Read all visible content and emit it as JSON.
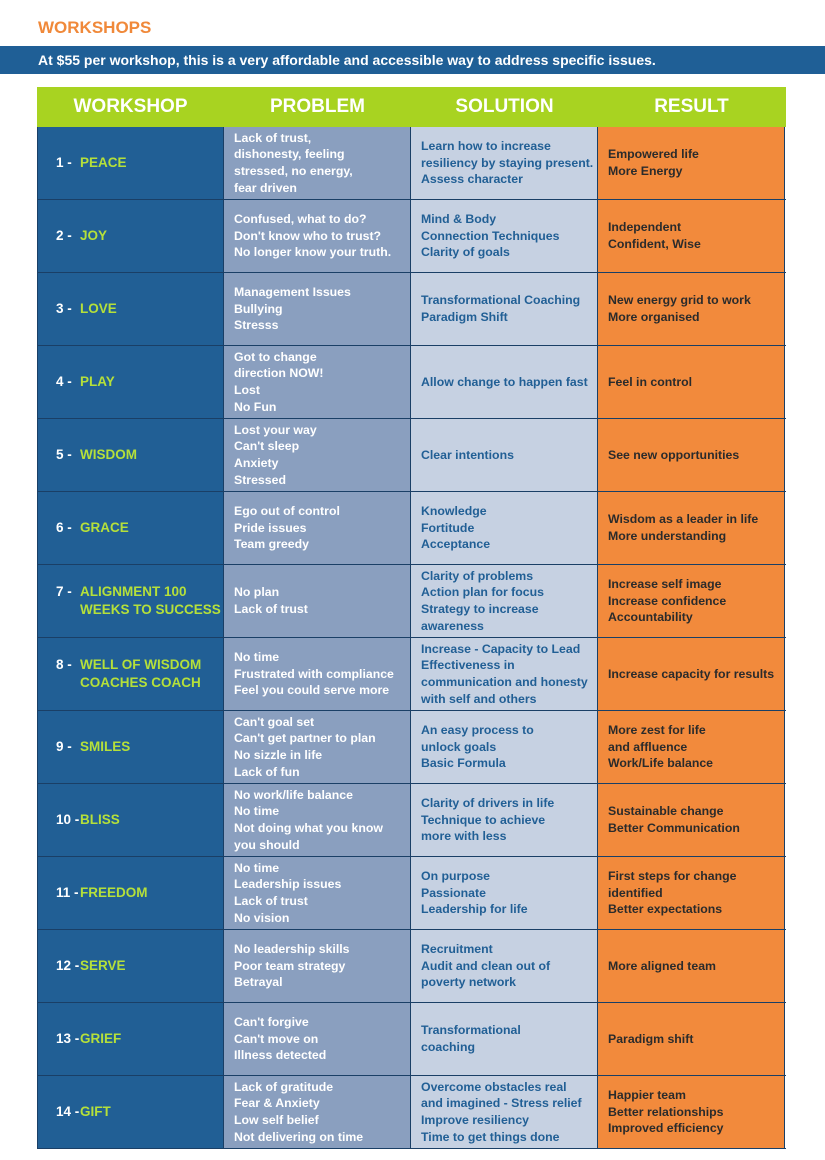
{
  "header": {
    "title": "WORKSHOPS",
    "banner": "At $55 per workshop, this is a very affordable and accessible way to address specific issues."
  },
  "table": {
    "columns": [
      "WORKSHOP",
      "PROBLEM",
      "SOLUTION",
      "RESULT"
    ],
    "rows": [
      {
        "number": "1 -",
        "name": [
          "PEACE"
        ],
        "problem": [
          "Lack of trust,",
          "dishonesty, feeling",
          "stressed, no energy,",
          "fear driven"
        ],
        "solution": [
          "Learn how to increase",
          "resiliency by staying present.",
          "Assess character"
        ],
        "result": [
          "Empowered life",
          "More Energy"
        ]
      },
      {
        "number": "2 -",
        "name": [
          "JOY"
        ],
        "problem": [
          "Confused, what to do?",
          "Don't know who to trust?",
          "No longer know your truth."
        ],
        "solution": [
          "Mind & Body",
          "Connection Techniques",
          "Clarity of goals"
        ],
        "result": [
          "Independent",
          "Confident, Wise"
        ]
      },
      {
        "number": "3 -",
        "name": [
          "LOVE"
        ],
        "problem": [
          "Management Issues",
          "Bullying",
          "Stresss"
        ],
        "solution": [
          "Transformational Coaching",
          "Paradigm Shift"
        ],
        "result": [
          "New energy grid to work",
          "More organised"
        ]
      },
      {
        "number": "4 -",
        "name": [
          "PLAY"
        ],
        "problem": [
          "Got to change",
          "direction NOW!",
          "Lost",
          "No Fun"
        ],
        "solution": [
          "Allow change to happen fast"
        ],
        "result": [
          "Feel in control"
        ]
      },
      {
        "number": "5 -",
        "name": [
          "WISDOM"
        ],
        "problem": [
          "Lost your way",
          "Can't sleep",
          "Anxiety",
          "Stressed"
        ],
        "solution": [
          "Clear intentions"
        ],
        "result": [
          "See new opportunities"
        ]
      },
      {
        "number": "6 -",
        "name": [
          "GRACE"
        ],
        "problem": [
          "Ego out of control",
          "Pride issues",
          "Team greedy"
        ],
        "solution": [
          "Knowledge",
          "Fortitude",
          "Acceptance"
        ],
        "result": [
          "Wisdom as a leader in life",
          "More understanding"
        ]
      },
      {
        "number": "7 -",
        "name": [
          "ALIGNMENT 100",
          "WEEKS TO SUCCESS"
        ],
        "problem": [
          "No plan",
          "Lack of trust"
        ],
        "solution": [
          "Clarity of problems",
          "Action plan for focus",
          "Strategy to increase",
          "awareness"
        ],
        "result": [
          "Increase self image",
          "Increase confidence",
          "Accountability"
        ]
      },
      {
        "number": "8 -",
        "name": [
          "WELL OF WISDOM",
          "COACHES COACH"
        ],
        "problem": [
          "No time",
          "Frustrated with compliance",
          "Feel you could serve more"
        ],
        "solution": [
          "Increase - Capacity to Lead",
          "Effectiveness in",
          "communication and honesty",
          "with self and others"
        ],
        "result": [
          "Increase capacity for results"
        ]
      },
      {
        "number": "9 -",
        "name": [
          "SMILES"
        ],
        "problem": [
          "Can't goal set",
          "Can't get partner to plan",
          "No sizzle in life",
          "Lack of fun"
        ],
        "solution": [
          "An easy process to",
          "unlock goals",
          "Basic Formula"
        ],
        "result": [
          "More zest for life",
          "and affluence",
          "Work/Life balance"
        ]
      },
      {
        "number": "10 -",
        "name": [
          "BLISS"
        ],
        "problem": [
          "No work/life balance",
          "No time",
          "Not doing what you know",
          "you should"
        ],
        "solution": [
          "Clarity of drivers in life",
          "Technique to achieve",
          "more with less"
        ],
        "result": [
          "Sustainable change",
          "Better Communication"
        ]
      },
      {
        "number": "11 -",
        "name": [
          "FREEDOM"
        ],
        "problem": [
          "No time",
          "Leadership issues",
          "Lack of trust",
          "No vision"
        ],
        "solution": [
          "On purpose",
          "Passionate",
          "Leadership for life"
        ],
        "result": [
          "First steps for change",
          "identified",
          "Better expectations"
        ]
      },
      {
        "number": "12 -",
        "name": [
          "SERVE"
        ],
        "problem": [
          "No leadership skills",
          "Poor team strategy",
          "Betrayal"
        ],
        "solution": [
          "Recruitment",
          "Audit and clean out of",
          "poverty network"
        ],
        "result": [
          "More aligned team"
        ]
      },
      {
        "number": "13 -",
        "name": [
          "GRIEF"
        ],
        "problem": [
          "Can't forgive",
          "Can't move on",
          "Illness detected"
        ],
        "solution": [
          "Transformational",
          "coaching"
        ],
        "result": [
          "Paradigm shift"
        ]
      },
      {
        "number": "14 -",
        "name": [
          "GIFT"
        ],
        "problem": [
          "Lack of gratitude",
          "Fear & Anxiety",
          "Low self belief",
          "Not delivering on time"
        ],
        "solution": [
          "Overcome obstacles real",
          "and imagined - Stress relief",
          "Improve resiliency",
          "Time to get things done"
        ],
        "result": [
          "Happier team",
          "Better relationships",
          "Improved efficiency"
        ]
      }
    ]
  }
}
